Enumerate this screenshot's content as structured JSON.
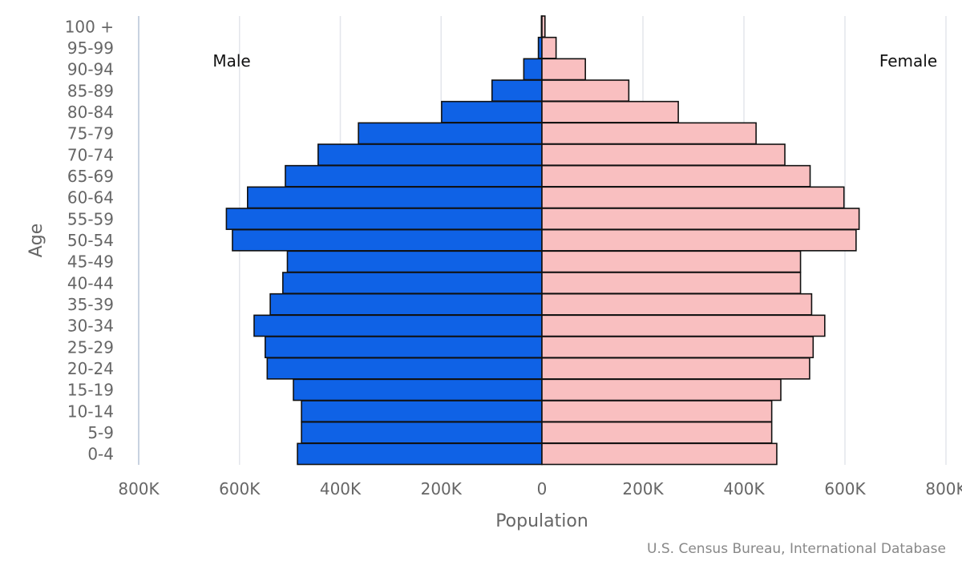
{
  "chart_data": {
    "type": "bar",
    "orientation": "horizontal-population-pyramid",
    "categories": [
      "0-4",
      "5-9",
      "10-14",
      "15-19",
      "20-24",
      "25-29",
      "30-34",
      "35-39",
      "40-44",
      "45-49",
      "50-54",
      "55-59",
      "60-64",
      "65-69",
      "70-74",
      "75-79",
      "80-84",
      "85-89",
      "90-94",
      "95-99",
      "100 +"
    ],
    "series": [
      {
        "name": "Male",
        "color": "#0f62e6",
        "side": "left",
        "values": [
          485000,
          477000,
          477000,
          493000,
          545000,
          549000,
          571000,
          539000,
          514000,
          505000,
          614000,
          626000,
          584000,
          509000,
          444000,
          364000,
          199000,
          99000,
          36000,
          7000,
          1000
        ]
      },
      {
        "name": "Female",
        "color": "#f9bfc0",
        "side": "right",
        "values": [
          465000,
          455000,
          455000,
          473000,
          530000,
          537000,
          560000,
          534000,
          512000,
          512000,
          622000,
          628000,
          598000,
          531000,
          481000,
          424000,
          270000,
          172000,
          86000,
          28000,
          6000
        ]
      }
    ],
    "xlabel": "Population",
    "ylabel": "Age",
    "xlim": [
      -800000,
      800000
    ],
    "xticks": [
      -800000,
      -600000,
      -400000,
      -200000,
      0,
      200000,
      400000,
      600000,
      800000
    ],
    "xtick_labels": [
      "800K",
      "600K",
      "400K",
      "200K",
      "0",
      "200K",
      "400K",
      "600K",
      "800K"
    ],
    "grid": "vertical",
    "legend": "none",
    "source": "U.S. Census Bureau, International Database"
  }
}
